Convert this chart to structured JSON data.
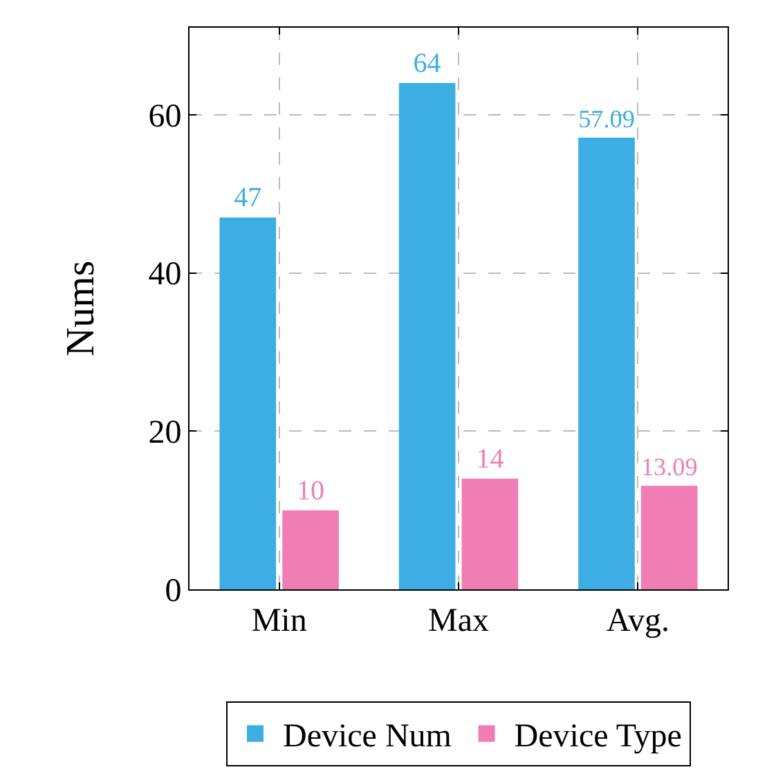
{
  "chart_data": {
    "type": "bar",
    "ylabel": "Nums",
    "categories": [
      "Min",
      "Max",
      "Avg."
    ],
    "series": [
      {
        "name": "Device Num",
        "color": "#3daee3",
        "values": [
          47,
          64,
          57.09
        ]
      },
      {
        "name": "Device Type",
        "color": "#f07eb4",
        "values": [
          10,
          14,
          13.09
        ]
      }
    ],
    "ylim": [
      0,
      71
    ],
    "yticks": [
      0,
      20,
      40,
      60
    ],
    "grid": true,
    "legend": "bottom",
    "data_labels": true
  }
}
